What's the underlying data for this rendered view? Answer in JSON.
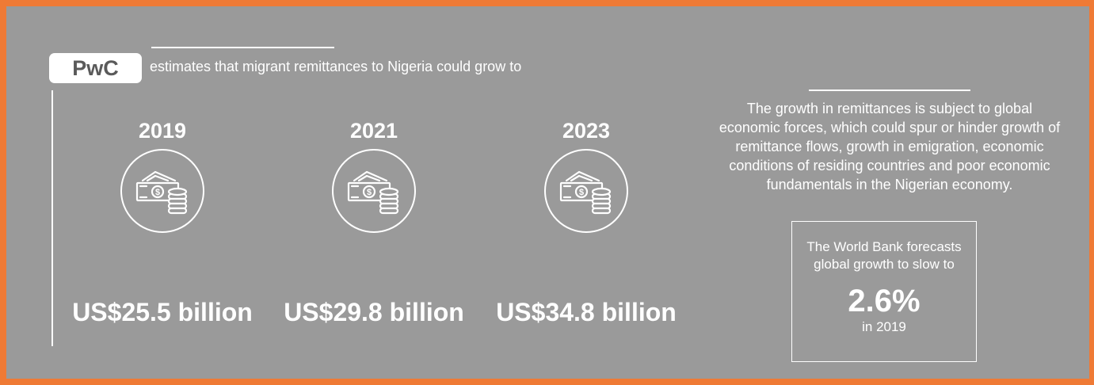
{
  "header": {
    "badge": "PwC",
    "intro": "estimates that migrant remittances to Nigeria could grow to"
  },
  "projections": [
    {
      "year": "2019",
      "icon": "cash-coins-icon",
      "amount": "US$25.5 billion"
    },
    {
      "year": "2021",
      "icon": "cash-coins-icon",
      "amount": "US$29.8 billion"
    },
    {
      "year": "2023",
      "icon": "cash-coins-icon",
      "amount": "US$34.8 billion"
    }
  ],
  "note": "The growth in remittances is subject to global economic forces, which could spur or hinder growth of remittance flows, growth in emigration, economic conditions of residing countries and poor economic fundamentals in the Nigerian economy.",
  "forecast": {
    "text": "The World Bank forecasts global growth to slow to",
    "value": "2.6%",
    "period": "in 2019"
  },
  "colors": {
    "background": "#ef7a35",
    "panel": "#9a9a9a",
    "text": "#ffffff",
    "badge_text": "#5a5a5a"
  }
}
